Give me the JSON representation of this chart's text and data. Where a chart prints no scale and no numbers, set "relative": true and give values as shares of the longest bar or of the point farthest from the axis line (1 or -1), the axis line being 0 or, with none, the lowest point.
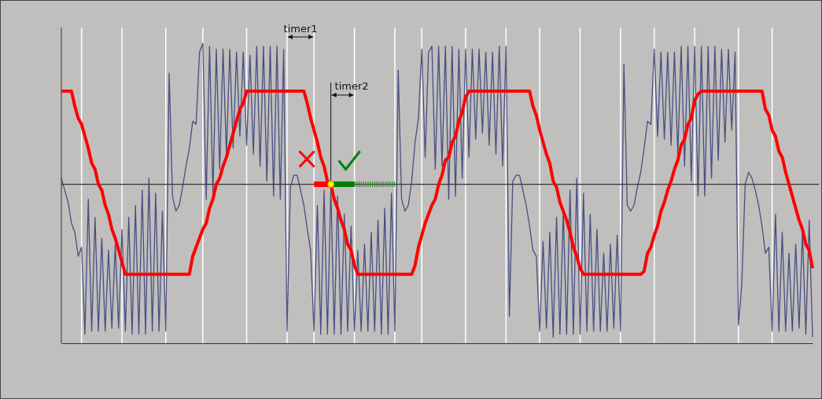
{
  "chart_data": {
    "type": "line",
    "relative": true,
    "categories": [
      null,
      null,
      null,
      null,
      null,
      null,
      null,
      null,
      null,
      null,
      null,
      null,
      null,
      null,
      null,
      null,
      null,
      null,
      null,
      null,
      null,
      null,
      null,
      null,
      null,
      null,
      null,
      null,
      null,
      null,
      null,
      null,
      null,
      null,
      null,
      null,
      null,
      null,
      null,
      null,
      null,
      null,
      null,
      null,
      null,
      null,
      null,
      null,
      null,
      null,
      null,
      null,
      null,
      null,
      null,
      null,
      null,
      null,
      null,
      null,
      null,
      null,
      null,
      null,
      null,
      null,
      null,
      null,
      null,
      null,
      null,
      null,
      null,
      null,
      null,
      null,
      null,
      null,
      null,
      null,
      null,
      null,
      null,
      null,
      null,
      null,
      null,
      null,
      null,
      null,
      null,
      null,
      null,
      null,
      null,
      null,
      null,
      null,
      null,
      null,
      null,
      null,
      null,
      null,
      null,
      null,
      null,
      null,
      null,
      null,
      null,
      null,
      null,
      null,
      null,
      null,
      null,
      null,
      null,
      null,
      null,
      null,
      null,
      null,
      null,
      null,
      null,
      null,
      null,
      null,
      null,
      null,
      null,
      null,
      null,
      null,
      null,
      null,
      null,
      null,
      null,
      null,
      null,
      null,
      null,
      null,
      null,
      null,
      null,
      null,
      null,
      null,
      null,
      null,
      null,
      null,
      null,
      null,
      null,
      null,
      null,
      null,
      null,
      null,
      null,
      null,
      null,
      null,
      null,
      null,
      null,
      null,
      null,
      null,
      null,
      null,
      null,
      null,
      null,
      null,
      null,
      null,
      null,
      null,
      null,
      null,
      null,
      null,
      null,
      null,
      null,
      null,
      null,
      null,
      null,
      null,
      null,
      null,
      null,
      null,
      null,
      null,
      null,
      null,
      null,
      null,
      null,
      null,
      null,
      null,
      null,
      null,
      null,
      null,
      null,
      null,
      null,
      null,
      null,
      null,
      null,
      null,
      null,
      null
    ],
    "series": [
      {
        "color": "#343a78",
        "values": [
          0.55,
          0.51,
          0.47,
          0.4,
          0.37,
          0.29,
          0.32,
          0.03,
          0.48,
          0.04,
          0.42,
          0.04,
          0.35,
          0.04,
          0.31,
          0.05,
          0.33,
          0.05,
          0.38,
          0.04,
          0.42,
          0.03,
          0.46,
          0.03,
          0.51,
          0.03,
          0.55,
          0.04,
          0.5,
          0.04,
          0.44,
          0.04,
          0.9,
          0.49,
          0.44,
          0.46,
          0.52,
          0.59,
          0.65,
          0.74,
          0.73,
          0.97,
          1.0,
          0.48,
          0.99,
          0.5,
          0.98,
          0.58,
          0.98,
          0.63,
          0.98,
          0.65,
          0.97,
          0.69,
          0.97,
          0.66,
          0.96,
          0.63,
          0.99,
          0.59,
          0.99,
          0.54,
          0.99,
          0.49,
          0.99,
          0.48,
          0.98,
          0.04,
          0.52,
          0.56,
          0.56,
          0.51,
          0.46,
          0.38,
          0.31,
          0.04,
          0.46,
          0.03,
          0.51,
          0.03,
          0.52,
          0.03,
          0.49,
          0.03,
          0.43,
          0.04,
          0.39,
          0.04,
          0.31,
          0.04,
          0.33,
          0.04,
          0.37,
          0.04,
          0.41,
          0.03,
          0.45,
          0.03,
          0.5,
          0.04,
          0.91,
          0.48,
          0.44,
          0.46,
          0.54,
          0.67,
          0.75,
          0.98,
          0.62,
          0.97,
          0.99,
          0.58,
          0.99,
          0.59,
          0.99,
          0.48,
          0.99,
          0.49,
          0.98,
          0.55,
          0.98,
          0.62,
          0.98,
          0.68,
          0.98,
          0.7,
          0.97,
          0.66,
          0.97,
          0.63,
          0.99,
          0.59,
          0.99,
          0.09,
          0.54,
          0.56,
          0.56,
          0.51,
          0.46,
          0.39,
          0.31,
          0.29,
          0.04,
          0.34,
          0.05,
          0.37,
          0.02,
          0.42,
          0.03,
          0.44,
          0.03,
          0.51,
          0.03,
          0.55,
          0.03,
          0.5,
          0.04,
          0.43,
          0.04,
          0.38,
          0.04,
          0.3,
          0.04,
          0.33,
          0.05,
          0.36,
          0.04,
          0.93,
          0.46,
          0.44,
          0.46,
          0.52,
          0.57,
          0.65,
          0.74,
          0.73,
          0.98,
          0.69,
          0.97,
          0.68,
          0.97,
          0.66,
          0.97,
          0.63,
          0.99,
          0.59,
          0.99,
          0.54,
          0.99,
          0.49,
          0.99,
          0.49,
          0.99,
          0.55,
          0.99,
          0.61,
          0.98,
          0.67,
          0.98,
          0.71,
          0.97,
          0.06,
          0.2,
          0.53,
          0.57,
          0.55,
          0.51,
          0.46,
          0.39,
          0.3,
          0.32,
          0.04,
          0.43,
          0.04,
          0.37,
          0.04,
          0.3,
          0.04,
          0.33,
          0.05,
          0.37,
          0.03,
          0.41,
          0.02
        ]
      },
      {
        "color": "#ff0000",
        "values": [
          0.84,
          0.84,
          0.84,
          0.84,
          0.79,
          0.75,
          0.73,
          0.69,
          0.65,
          0.6,
          0.58,
          0.53,
          0.51,
          0.46,
          0.43,
          0.38,
          0.35,
          0.31,
          0.27,
          0.23,
          0.23,
          0.23,
          0.23,
          0.23,
          0.23,
          0.23,
          0.23,
          0.23,
          0.23,
          0.23,
          0.23,
          0.23,
          0.23,
          0.23,
          0.23,
          0.23,
          0.23,
          0.23,
          0.23,
          0.29,
          0.32,
          0.35,
          0.38,
          0.4,
          0.45,
          0.48,
          0.53,
          0.55,
          0.59,
          0.62,
          0.66,
          0.7,
          0.74,
          0.78,
          0.8,
          0.84,
          0.84,
          0.84,
          0.84,
          0.84,
          0.84,
          0.84,
          0.84,
          0.84,
          0.84,
          0.84,
          0.84,
          0.84,
          0.84,
          0.84,
          0.84,
          0.84,
          0.84,
          0.8,
          0.75,
          0.71,
          0.67,
          0.62,
          0.59,
          0.54,
          0.53,
          0.48,
          0.45,
          0.41,
          0.38,
          0.33,
          0.31,
          0.26,
          0.23,
          0.23,
          0.23,
          0.23,
          0.23,
          0.23,
          0.23,
          0.23,
          0.23,
          0.23,
          0.23,
          0.23,
          0.23,
          0.23,
          0.23,
          0.23,
          0.23,
          0.26,
          0.32,
          0.36,
          0.4,
          0.43,
          0.46,
          0.48,
          0.53,
          0.56,
          0.61,
          0.62,
          0.67,
          0.69,
          0.74,
          0.77,
          0.82,
          0.84,
          0.84,
          0.84,
          0.84,
          0.84,
          0.84,
          0.84,
          0.84,
          0.84,
          0.84,
          0.84,
          0.84,
          0.84,
          0.84,
          0.84,
          0.84,
          0.84,
          0.84,
          0.84,
          0.79,
          0.76,
          0.71,
          0.67,
          0.63,
          0.6,
          0.54,
          0.52,
          0.47,
          0.44,
          0.41,
          0.37,
          0.32,
          0.29,
          0.25,
          0.23,
          0.23,
          0.23,
          0.23,
          0.23,
          0.23,
          0.23,
          0.23,
          0.23,
          0.23,
          0.23,
          0.23,
          0.23,
          0.23,
          0.23,
          0.23,
          0.23,
          0.23,
          0.24,
          0.3,
          0.32,
          0.36,
          0.39,
          0.44,
          0.47,
          0.51,
          0.54,
          0.58,
          0.61,
          0.66,
          0.68,
          0.73,
          0.75,
          0.81,
          0.83,
          0.84,
          0.84,
          0.84,
          0.84,
          0.84,
          0.84,
          0.84,
          0.84,
          0.84,
          0.84,
          0.84,
          0.84,
          0.84,
          0.84,
          0.84,
          0.84,
          0.84,
          0.84,
          0.84,
          0.78,
          0.76,
          0.71,
          0.69,
          0.64,
          0.62,
          0.57,
          0.53,
          0.49,
          0.45,
          0.41,
          0.38,
          0.33,
          0.31,
          0.25
        ]
      }
    ],
    "ref_lines": [
      {
        "axis": "y",
        "value": 0.53,
        "color": "#333333"
      }
    ],
    "annotations": [
      "timer1",
      "timer2"
    ]
  }
}
